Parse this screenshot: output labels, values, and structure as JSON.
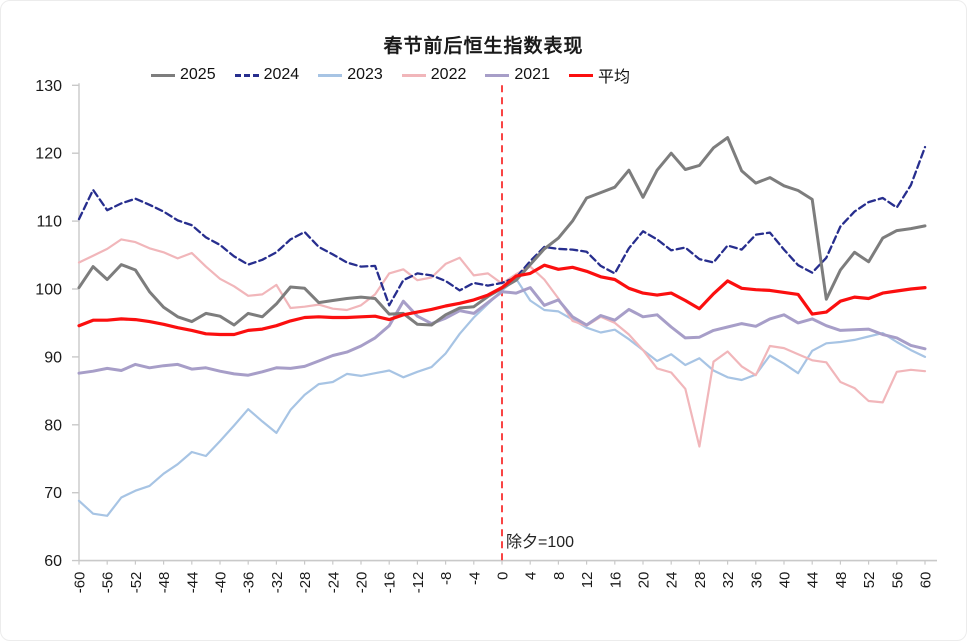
{
  "chart_data": {
    "type": "line",
    "title": "春节前后恒生指数表现",
    "xlabel": "",
    "ylabel": "",
    "xlim": [
      -60,
      60
    ],
    "ylim": [
      60,
      130
    ],
    "grid": false,
    "legend_position": "top",
    "yticks": [
      60,
      70,
      80,
      90,
      100,
      110,
      120,
      130
    ],
    "xticks": [
      -60,
      -56,
      -52,
      -48,
      -44,
      -40,
      -36,
      -32,
      -28,
      -24,
      -20,
      -16,
      -12,
      -8,
      -4,
      0,
      4,
      8,
      12,
      16,
      20,
      24,
      28,
      32,
      36,
      40,
      44,
      48,
      52,
      56,
      60
    ],
    "x": [
      -60,
      -58,
      -56,
      -54,
      -52,
      -50,
      -48,
      -46,
      -44,
      -42,
      -40,
      -38,
      -36,
      -34,
      -32,
      -30,
      -28,
      -26,
      -24,
      -22,
      -20,
      -18,
      -16,
      -14,
      -12,
      -10,
      -8,
      -6,
      -4,
      -2,
      0,
      2,
      4,
      6,
      8,
      10,
      12,
      14,
      16,
      18,
      20,
      22,
      24,
      26,
      28,
      30,
      32,
      34,
      36,
      38,
      40,
      42,
      44,
      46,
      48,
      50,
      52,
      54,
      56,
      58,
      60
    ],
    "vline": {
      "x": 0,
      "label": "除夕=100",
      "color": "#f94444",
      "style": "dashed"
    },
    "axis_color": "#c9c9c9",
    "text_color": "#1a1a1a",
    "series": [
      {
        "name": "2025",
        "color": "#7d7d7d",
        "dash": "none",
        "width": 3,
        "values": [
          100.2,
          103.3,
          101.4,
          103.6,
          102.8,
          99.6,
          97.3,
          95.9,
          95.2,
          96.4,
          96.0,
          94.7,
          96.4,
          95.9,
          97.8,
          100.3,
          100.1,
          98.0,
          98.3,
          98.6,
          98.8,
          98.6,
          96.3,
          96.4,
          94.8,
          94.7,
          96.2,
          97.2,
          97.4,
          98.9,
          100.1,
          101.3,
          103.6,
          105.9,
          107.5,
          110.0,
          113.4,
          114.2,
          115.0,
          117.5,
          113.5,
          117.5,
          120.0,
          117.6,
          118.2,
          120.8,
          122.3,
          117.4,
          115.6,
          116.4,
          115.2,
          114.5,
          113.2,
          98.5,
          102.8,
          105.4,
          104.0,
          107.5,
          108.6,
          108.9,
          109.3
        ]
      },
      {
        "name": "2024",
        "color": "#272e8e",
        "dash": "7,4",
        "width": 2.3,
        "values": [
          110.3,
          114.6,
          111.6,
          112.6,
          113.3,
          112.4,
          111.4,
          110.1,
          109.4,
          107.6,
          106.5,
          104.8,
          103.6,
          104.3,
          105.4,
          107.3,
          108.4,
          106.2,
          105.1,
          103.9,
          103.3,
          103.4,
          97.6,
          101.3,
          102.3,
          102.0,
          101.2,
          99.8,
          100.9,
          100.5,
          100.9,
          101.7,
          104.1,
          106.2,
          105.9,
          105.8,
          105.5,
          103.4,
          102.3,
          106.0,
          108.5,
          107.3,
          105.7,
          106.1,
          104.4,
          103.9,
          106.4,
          105.8,
          108.0,
          108.3,
          105.8,
          103.5,
          102.4,
          104.6,
          109.2,
          111.4,
          112.8,
          113.4,
          112.0,
          115.3,
          120.9
        ]
      },
      {
        "name": "2023",
        "color": "#a7c4e4",
        "dash": "none",
        "width": 2.2,
        "values": [
          68.8,
          66.9,
          66.6,
          69.3,
          70.3,
          71.0,
          72.8,
          74.2,
          76.0,
          75.4,
          77.6,
          79.9,
          82.3,
          80.5,
          78.8,
          82.2,
          84.4,
          86.0,
          86.3,
          87.5,
          87.2,
          87.6,
          88.0,
          87.0,
          87.8,
          88.5,
          90.5,
          93.4,
          95.8,
          97.8,
          99.8,
          101.5,
          98.3,
          96.9,
          96.7,
          95.5,
          94.3,
          93.6,
          94.0,
          92.6,
          91.0,
          89.4,
          90.4,
          88.8,
          89.8,
          88.0,
          87.0,
          86.6,
          87.4,
          90.2,
          89.0,
          87.6,
          90.9,
          92.0,
          92.2,
          92.5,
          93.0,
          93.5,
          92.2,
          91.0,
          90.0
        ]
      },
      {
        "name": "2022",
        "color": "#f1b6ba",
        "dash": "none",
        "width": 2.2,
        "values": [
          103.9,
          104.9,
          105.9,
          107.3,
          106.9,
          106.0,
          105.4,
          104.5,
          105.3,
          103.3,
          101.5,
          100.4,
          99.0,
          99.2,
          100.6,
          97.2,
          97.4,
          97.7,
          97.1,
          96.9,
          97.6,
          99.2,
          102.3,
          102.9,
          101.3,
          101.7,
          103.7,
          104.6,
          102.0,
          102.3,
          100.8,
          102.2,
          103.3,
          101.4,
          98.6,
          95.3,
          94.6,
          95.9,
          95.0,
          93.3,
          91.0,
          88.3,
          87.7,
          85.3,
          76.8,
          89.3,
          90.8,
          88.6,
          87.3,
          91.6,
          91.3,
          90.4,
          89.5,
          89.2,
          86.3,
          85.4,
          83.5,
          83.3,
          87.8,
          88.1,
          87.9
        ]
      },
      {
        "name": "2021",
        "color": "#a79ec8",
        "dash": "none",
        "width": 3,
        "values": [
          87.6,
          87.9,
          88.3,
          88.0,
          88.9,
          88.4,
          88.7,
          88.9,
          88.2,
          88.4,
          87.9,
          87.5,
          87.3,
          87.8,
          88.4,
          88.3,
          88.6,
          89.4,
          90.2,
          90.7,
          91.6,
          92.8,
          94.6,
          98.2,
          96.0,
          94.9,
          95.7,
          96.8,
          96.4,
          98.0,
          99.6,
          99.4,
          100.2,
          97.6,
          98.4,
          95.9,
          94.7,
          96.1,
          95.4,
          97.0,
          95.9,
          96.2,
          94.4,
          92.8,
          92.9,
          93.9,
          94.4,
          94.9,
          94.5,
          95.6,
          96.2,
          95.0,
          95.6,
          94.6,
          93.9,
          94.0,
          94.1,
          93.3,
          92.8,
          91.7,
          91.2
        ]
      },
      {
        "name": "平均",
        "color": "#fb0f0f",
        "dash": "none",
        "width": 3.2,
        "values": [
          94.6,
          95.4,
          95.4,
          95.6,
          95.5,
          95.2,
          94.8,
          94.3,
          93.9,
          93.4,
          93.3,
          93.3,
          93.9,
          94.1,
          94.6,
          95.3,
          95.8,
          95.9,
          95.8,
          95.8,
          95.9,
          96.0,
          95.5,
          96.2,
          96.6,
          97.0,
          97.5,
          97.9,
          98.4,
          99.1,
          100.2,
          101.9,
          102.3,
          103.5,
          102.9,
          103.2,
          102.6,
          101.8,
          101.4,
          100.1,
          99.4,
          99.1,
          99.4,
          98.3,
          97.1,
          99.3,
          101.2,
          100.1,
          99.9,
          99.8,
          99.5,
          99.2,
          96.3,
          96.6,
          98.2,
          98.8,
          98.6,
          99.4,
          99.7,
          100.0,
          100.2
        ]
      }
    ]
  }
}
